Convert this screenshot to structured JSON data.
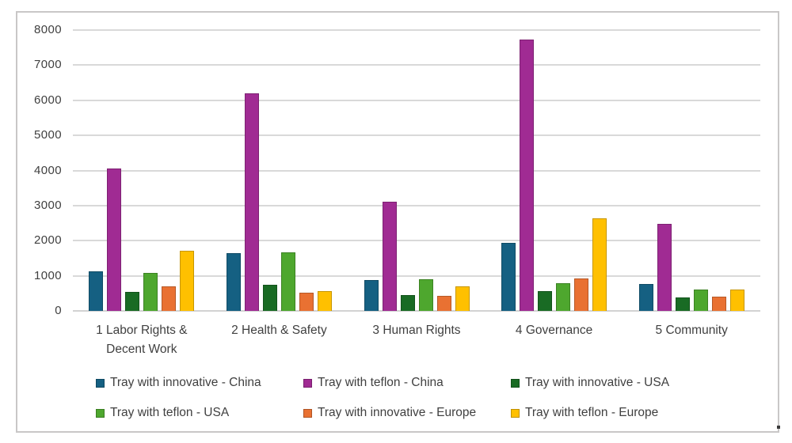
{
  "chart_data": {
    "type": "bar",
    "title": "",
    "xlabel": "",
    "ylabel": "",
    "categories": [
      "1 Labor Rights & Decent Work",
      "2 Health & Safety",
      "3 Human Rights",
      "4 Governance",
      "5 Community"
    ],
    "series": [
      {
        "name": "Tray with innovative - China",
        "color": "#156082",
        "values": [
          1130,
          1640,
          890,
          1930,
          770
        ]
      },
      {
        "name": "Tray with teflon - China",
        "color": "#A02B93",
        "values": [
          4060,
          6200,
          3100,
          7730,
          2470
        ]
      },
      {
        "name": "Tray with innovative - USA",
        "color": "#196B24",
        "values": [
          540,
          740,
          460,
          570,
          390
        ]
      },
      {
        "name": "Tray with teflon - USA",
        "color": "#4EA72E",
        "values": [
          1080,
          1660,
          900,
          790,
          600
        ]
      },
      {
        "name": "Tray with innovative - Europe",
        "color": "#E97132",
        "values": [
          690,
          520,
          420,
          920,
          400
        ]
      },
      {
        "name": "Tray with teflon - Europe",
        "color": "#FFC000",
        "values": [
          1710,
          570,
          700,
          2640,
          620
        ]
      }
    ],
    "ylim": [
      0,
      8000
    ],
    "ytick_step": 1000,
    "yticks": [
      "0",
      "1000",
      "2000",
      "3000",
      "4000",
      "5000",
      "6000",
      "7000",
      "8000"
    ],
    "grid": true,
    "legend_position": "bottom",
    "legend_rows": 2,
    "legend_columns": 3,
    "colors": {
      "axis_text": "#404040",
      "gridline": "#D9D9D9",
      "frame_border": "#C9C7C7",
      "background": "#FFFFFF"
    }
  }
}
